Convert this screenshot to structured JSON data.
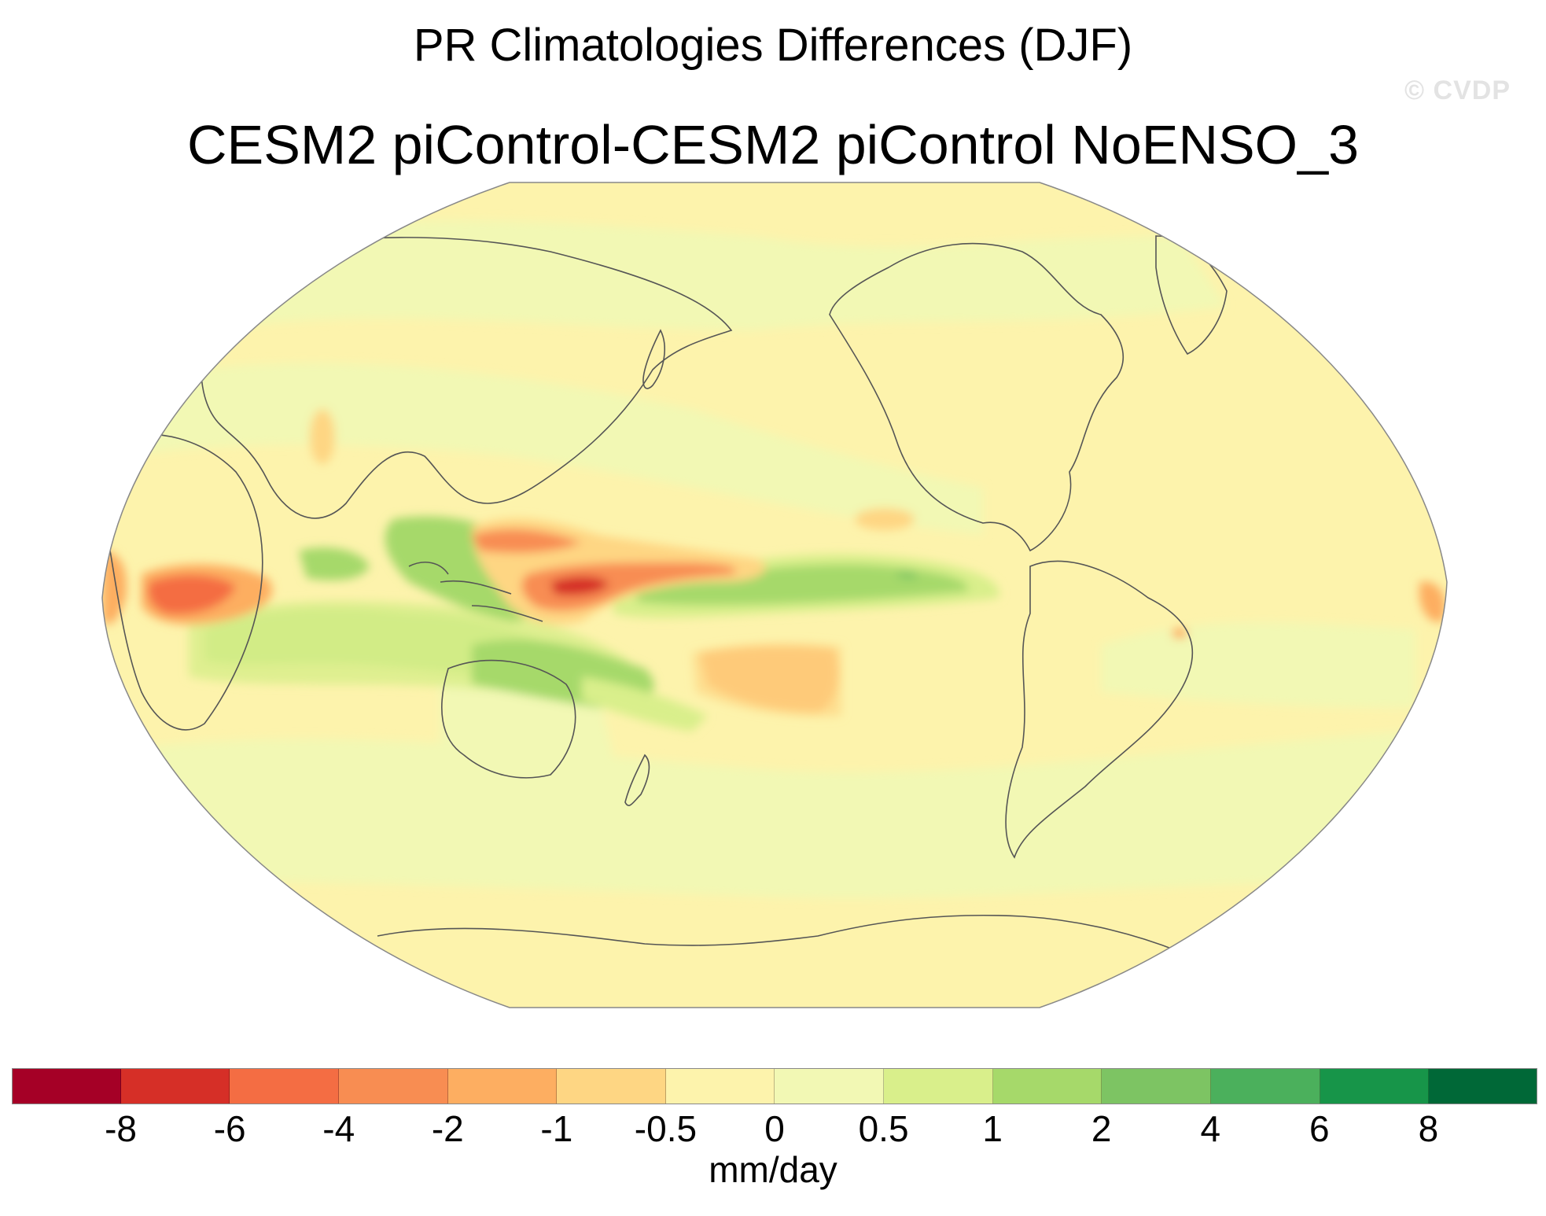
{
  "title": "PR Climatologies Differences (DJF)",
  "subtitle": "CESM2 piControl-CESM2 piControl NoENSO_3",
  "watermark": "© CVDP",
  "map": {
    "projection": "Robinson",
    "field": "PR",
    "season": "DJF",
    "background_color": "#fdf3ac",
    "regions": [
      {
        "name": "west-pacific-dry-anomaly",
        "value": "-6"
      },
      {
        "name": "east-africa-dry-anomaly",
        "value": "-4"
      },
      {
        "name": "equatorial-pacific-wet-anomaly",
        "value": "2"
      },
      {
        "name": "indian-ocean-wet-anomaly",
        "value": "2"
      },
      {
        "name": "south-pacific-dry-anomaly",
        "value": "-2"
      },
      {
        "name": "maritime-continent-wet-anomaly",
        "value": "1"
      },
      {
        "name": "australia-wet-anomaly",
        "value": "1"
      }
    ]
  },
  "colorbar": {
    "colors": [
      "#a50026",
      "#d62f27",
      "#f46d43",
      "#f88d52",
      "#fdae61",
      "#fed683",
      "#fdf3ac",
      "#f2f8b4",
      "#d9ef8b",
      "#a6d96a",
      "#7dc463",
      "#4bb05c",
      "#179549",
      "#006837"
    ],
    "ticks": [
      "-8",
      "-6",
      "-4",
      "-2",
      "-1",
      "-0.5",
      "0",
      "0.5",
      "1",
      "2",
      "4",
      "6",
      "8"
    ],
    "units": "mm/day"
  }
}
